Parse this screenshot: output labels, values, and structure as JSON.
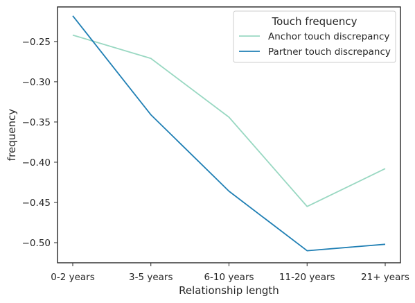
{
  "chart_data": {
    "type": "line",
    "categories": [
      "0-2 years",
      "3-5 years",
      "6-10 years",
      "11-20 years",
      "21+ years"
    ],
    "series": [
      {
        "name": "Anchor touch discrepancy",
        "color": "#99d8c2",
        "values": [
          -0.242,
          -0.271,
          -0.344,
          -0.455,
          -0.408
        ]
      },
      {
        "name": "Partner touch discrepancy",
        "color": "#1f7fb4",
        "values": [
          -0.218,
          -0.341,
          -0.436,
          -0.51,
          -0.502
        ]
      }
    ],
    "xlabel": "Relationship length",
    "ylabel": "frequency",
    "ylim": [
      -0.525,
      -0.207
    ],
    "yticks": [
      -0.25,
      -0.3,
      -0.35,
      -0.4,
      -0.45,
      -0.5
    ],
    "ytick_labels": [
      "−0.25",
      "−0.30",
      "−0.35",
      "−0.40",
      "−0.45",
      "−0.50"
    ],
    "legend": {
      "title": "Touch frequency",
      "position": "upper right"
    },
    "grid": false
  }
}
